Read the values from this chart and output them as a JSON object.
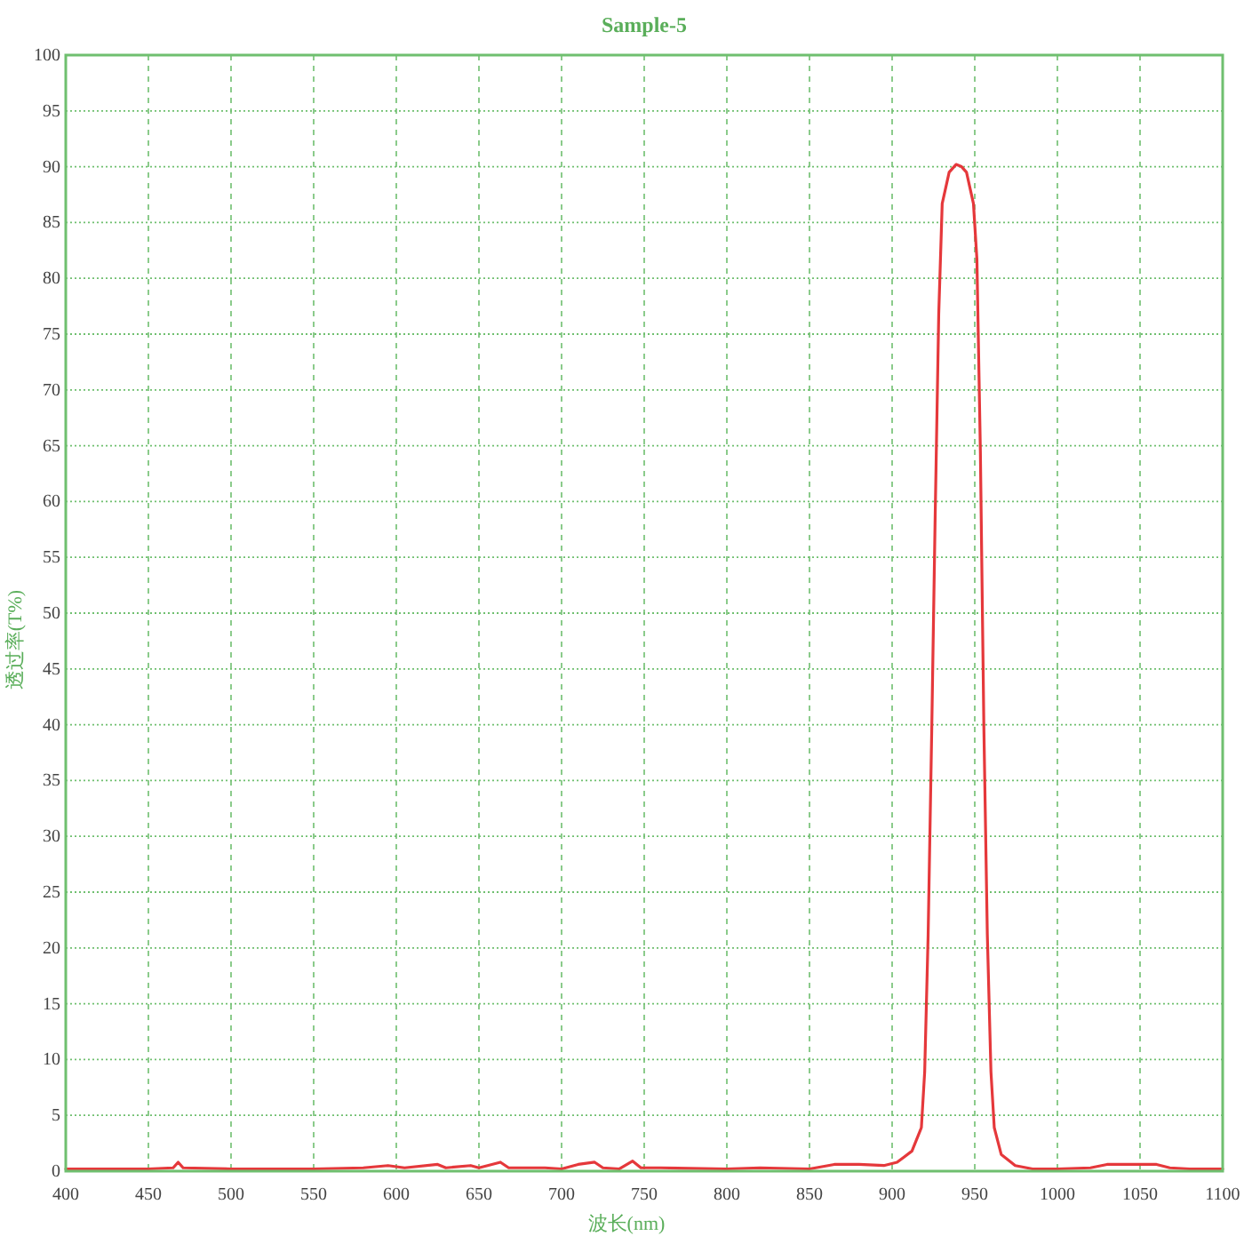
{
  "chart_data": {
    "type": "line",
    "title": "Sample-5",
    "xlabel": "波长(nm)",
    "ylabel": "透过率(T%)",
    "x": [
      400,
      420,
      450,
      465,
      468,
      471,
      500,
      550,
      580,
      595,
      605,
      625,
      630,
      645,
      650,
      663,
      668,
      690,
      700,
      710,
      720,
      725,
      735,
      743,
      748,
      760,
      800,
      820,
      850,
      865,
      880,
      895,
      903,
      912,
      917.7,
      919.7,
      921.8,
      924,
      926,
      928.2,
      930.3,
      934.5,
      938.7,
      942,
      945,
      949.2,
      951.3,
      953.4,
      955.5,
      957.6,
      959.8,
      961.8,
      966,
      974.5,
      985,
      1000,
      1020,
      1030,
      1060,
      1068,
      1080,
      1100
    ],
    "series": [
      {
        "color": "#e5383b",
        "values": [
          0.2,
          0.2,
          0.2,
          0.3,
          0.8,
          0.3,
          0.2,
          0.2,
          0.3,
          0.5,
          0.3,
          0.6,
          0.3,
          0.5,
          0.3,
          0.8,
          0.3,
          0.3,
          0.2,
          0.6,
          0.8,
          0.3,
          0.2,
          0.9,
          0.3,
          0.3,
          0.2,
          0.3,
          0.2,
          0.6,
          0.6,
          0.5,
          0.8,
          1.8,
          3.9,
          8.9,
          21.2,
          39.8,
          58.3,
          76.8,
          86.7,
          89.5,
          90.2,
          90.0,
          89.5,
          86.7,
          81.7,
          64.5,
          39.8,
          21.2,
          8.9,
          3.9,
          1.5,
          0.5,
          0.2,
          0.2,
          0.3,
          0.6,
          0.6,
          0.3,
          0.2,
          0.2
        ]
      }
    ],
    "xlim": [
      400,
      1100
    ],
    "ylim": [
      0,
      100
    ],
    "xticks": [
      400,
      450,
      500,
      550,
      600,
      650,
      700,
      750,
      800,
      850,
      900,
      950,
      1000,
      1050,
      1100
    ],
    "yticks": [
      0,
      5,
      10,
      15,
      20,
      25,
      30,
      35,
      40,
      45,
      50,
      55,
      60,
      65,
      70,
      75,
      80,
      85,
      90,
      95,
      100
    ],
    "grid": true,
    "line_style": "solid"
  }
}
